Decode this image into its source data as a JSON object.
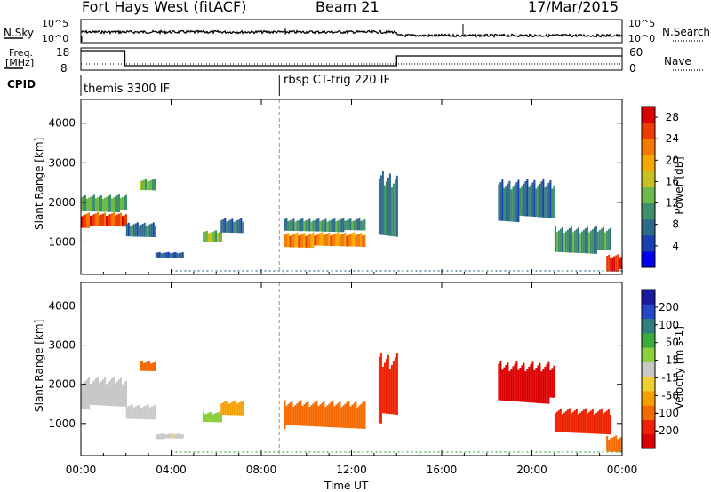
{
  "header": {
    "title": "Fort Hays West (fitACF)",
    "beam": "Beam 21",
    "date": "17/Mar/2015"
  },
  "panel_labels": {
    "nsky": "N.Sky",
    "nsky_ticks": [
      "10^5",
      "10^0"
    ],
    "nsearch": "N.Search",
    "freq_line1": "Freq.",
    "freq_line2": "[MHz]",
    "freq_ticks": [
      "18",
      "8"
    ],
    "nave": "Nave",
    "nave_ticks": [
      "60",
      "0"
    ],
    "cpid": "CPID"
  },
  "cpid": [
    {
      "label": "themis 3300 IF",
      "start_hour": 0
    },
    {
      "label": "rbsp CT-trig 220 IF",
      "start_hour": 8.8
    }
  ],
  "colors": {
    "power": [
      "#0000ee",
      "#1a3fb0",
      "#2e6a8a",
      "#3f8f6a",
      "#6fb84a",
      "#c8c020",
      "#f6a800",
      "#f57800",
      "#ee3c00",
      "#dd0000"
    ],
    "velocity": [
      "#1a1aa0",
      "#2547c8",
      "#2f7f7f",
      "#3caa3c",
      "#8cd03c",
      "#c8c8c8",
      "#f0d030",
      "#f6a000",
      "#f56a00",
      "#ee2200",
      "#dd0000"
    ]
  },
  "chart_data": [
    {
      "type": "heatmap",
      "name": "power",
      "xlabel": "",
      "ylabel": "Slant Range [km]",
      "xlim": [
        0,
        24
      ],
      "ylim": [
        180,
        4600
      ],
      "yticks": [
        "1000",
        "2000",
        "3000",
        "4000"
      ],
      "xticks": [
        "00:00",
        "04:00",
        "08:00",
        "12:00",
        "16:00",
        "20:00",
        "00:00"
      ],
      "colorbar": {
        "label": "Power [dB]",
        "ticks": [
          "4",
          "8",
          "12",
          "16",
          "20",
          "24",
          "28"
        ],
        "range": [
          0,
          30
        ]
      },
      "regions": [
        {
          "t0": 0.0,
          "t1": 2.0,
          "r0": 1350,
          "r1": 1750,
          "value": 25
        },
        {
          "t0": 0.0,
          "t1": 2.0,
          "r0": 1750,
          "r1": 2200,
          "value": 12
        },
        {
          "t0": 2.0,
          "t1": 3.3,
          "r0": 1100,
          "r1": 1500,
          "value": 8
        },
        {
          "t0": 2.6,
          "t1": 3.3,
          "r0": 2300,
          "r1": 2600,
          "value": 13
        },
        {
          "t0": 3.3,
          "t1": 4.5,
          "r0": 600,
          "r1": 750,
          "value": 6
        },
        {
          "t0": 5.4,
          "t1": 6.2,
          "r0": 1000,
          "r1": 1300,
          "value": 14
        },
        {
          "t0": 6.2,
          "t1": 7.2,
          "r0": 1200,
          "r1": 1600,
          "value": 8
        },
        {
          "t0": 9.0,
          "t1": 12.6,
          "r0": 850,
          "r1": 1250,
          "value": 22
        },
        {
          "t0": 9.0,
          "t1": 12.6,
          "r0": 1250,
          "r1": 1600,
          "value": 10
        },
        {
          "t0": 13.2,
          "t1": 14.0,
          "r0": 1000,
          "r1": 2800,
          "value": 9
        },
        {
          "t0": 18.5,
          "t1": 21.0,
          "r0": 1500,
          "r1": 2600,
          "value": 8
        },
        {
          "t0": 21.0,
          "t1": 23.5,
          "r0": 700,
          "r1": 1400,
          "value": 10
        },
        {
          "t0": 23.3,
          "t1": 24.0,
          "r0": 250,
          "r1": 700,
          "value": 27
        }
      ]
    },
    {
      "type": "heatmap",
      "name": "velocity",
      "xlabel": "Time UT",
      "ylabel": "Slant Range [km]",
      "xlim": [
        0,
        24
      ],
      "ylim": [
        180,
        4600
      ],
      "yticks": [
        "1000",
        "2000",
        "3000",
        "4000"
      ],
      "xticks": [
        "00:00",
        "04:00",
        "08:00",
        "12:00",
        "16:00",
        "20:00",
        "00:00"
      ],
      "colorbar": {
        "label": "Velocity [m s-1]",
        "ticks": [
          "200",
          "100",
          "50",
          "15",
          "-15",
          "-50",
          "-100",
          "-200"
        ],
        "range": [
          -250,
          250
        ]
      },
      "regions": [
        {
          "t0": 0.0,
          "t1": 2.0,
          "r0": 1350,
          "r1": 2200,
          "value": 0
        },
        {
          "t0": 2.0,
          "t1": 3.3,
          "r0": 1100,
          "r1": 1500,
          "value": -20
        },
        {
          "t0": 2.6,
          "t1": 3.3,
          "r0": 2300,
          "r1": 2600,
          "value": -150
        },
        {
          "t0": 3.3,
          "t1": 4.5,
          "r0": 600,
          "r1": 750,
          "value": -20
        },
        {
          "t0": 5.4,
          "t1": 6.2,
          "r0": 1000,
          "r1": 1300,
          "value": 40
        },
        {
          "t0": 6.2,
          "t1": 7.2,
          "r0": 1200,
          "r1": 1600,
          "value": -100
        },
        {
          "t0": 9.0,
          "t1": 12.6,
          "r0": 850,
          "r1": 1600,
          "value": -150
        },
        {
          "t0": 13.2,
          "t1": 14.0,
          "r0": 1000,
          "r1": 2800,
          "value": -200
        },
        {
          "t0": 18.5,
          "t1": 21.0,
          "r0": 1500,
          "r1": 2600,
          "value": -220
        },
        {
          "t0": 21.0,
          "t1": 23.5,
          "r0": 700,
          "r1": 1400,
          "value": -200
        },
        {
          "t0": 23.3,
          "t1": 24.0,
          "r0": 250,
          "r1": 700,
          "value": -140
        }
      ]
    }
  ]
}
